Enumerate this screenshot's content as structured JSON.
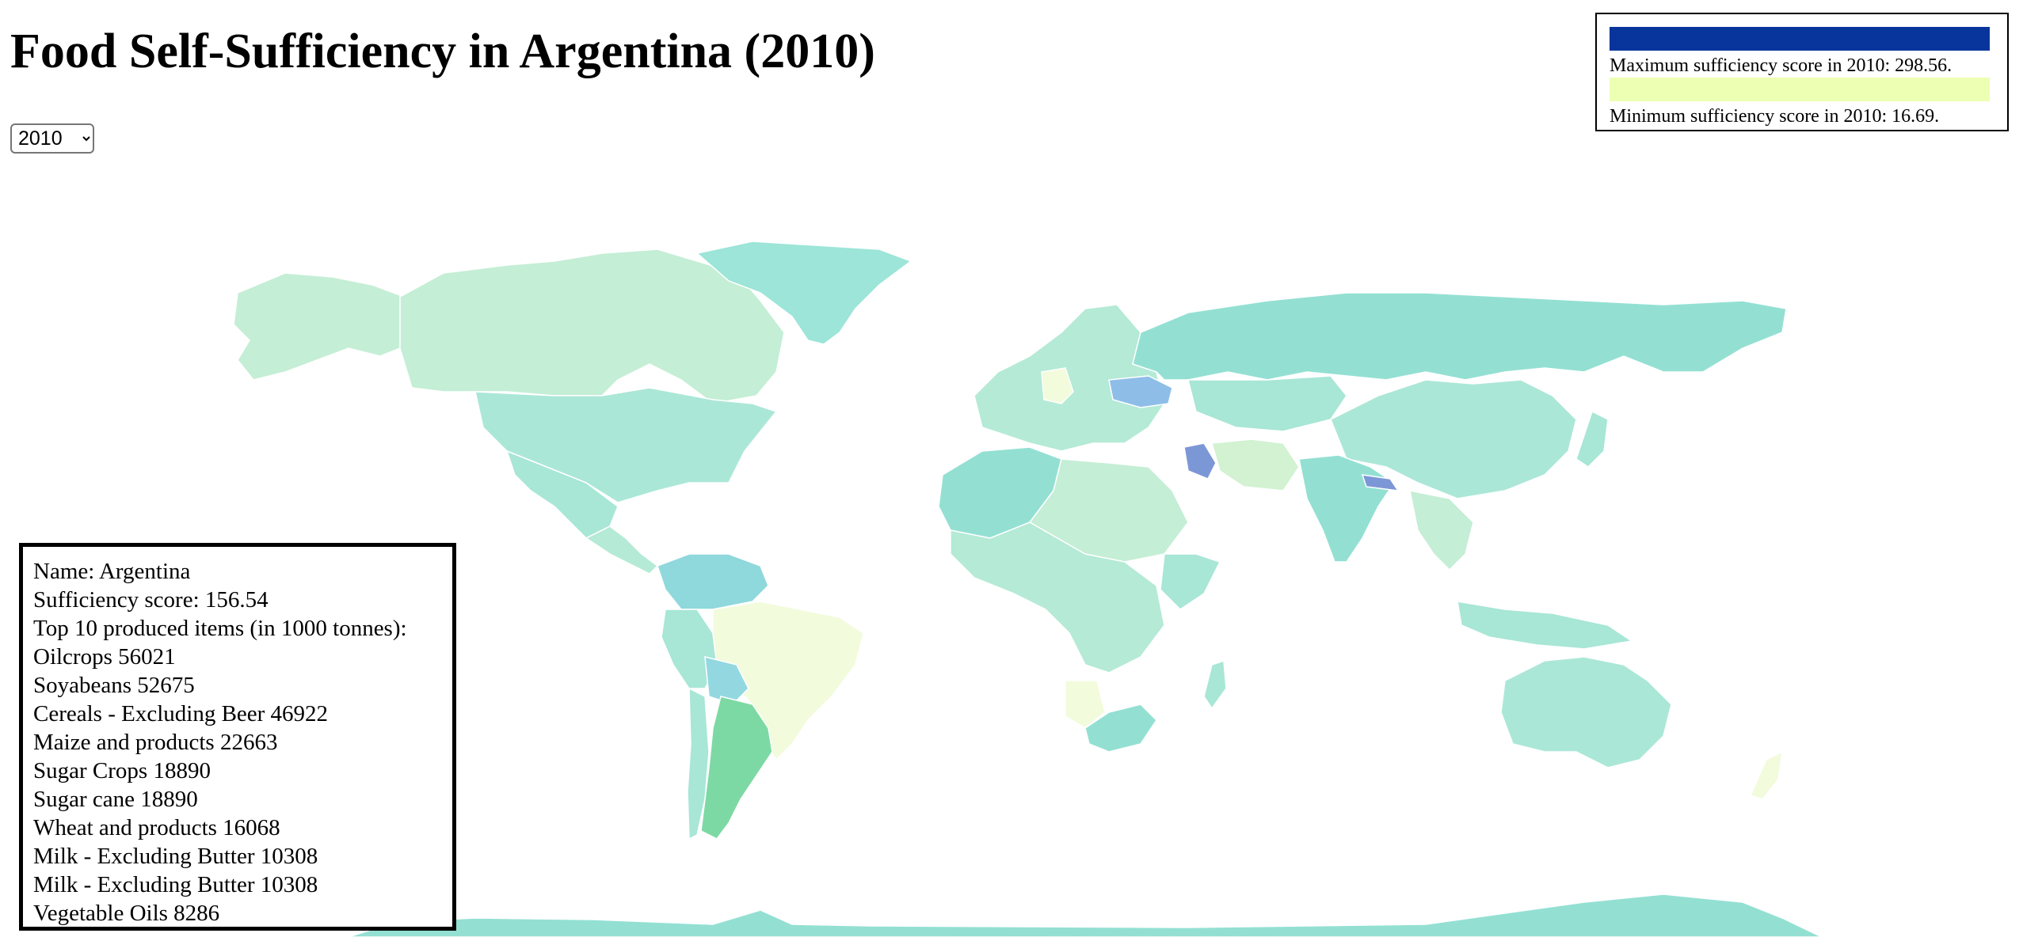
{
  "page": {
    "title": "Food Self-Sufficiency in Argentina (2010)"
  },
  "year_select": {
    "selected": "2010",
    "options": [
      "2010"
    ]
  },
  "legend": {
    "max_label": "Maximum sufficiency score in 2010: 298.56.",
    "min_label": "Minimum sufficiency score in 2010: 16.69.",
    "max_color": "#08359c",
    "min_color": "#edffb2"
  },
  "map": {
    "colors": {
      "ocean": "#ffffff",
      "border": "#ffffff",
      "teal": "#93e0d3",
      "light_teal": "#a8e6d6",
      "pale_green": "#c4eed5",
      "pale_yellow": "#f2fbdc",
      "mint": "#b4ead6",
      "green": "#7dd9a4",
      "blue": "#8ebee8",
      "dark_blue": "#7c97d6",
      "aqua": "#8fd8dc"
    },
    "regions": [
      {
        "name": "Canada",
        "color": "#c4eed5"
      },
      {
        "name": "Alaska",
        "color": "#c4eed5"
      },
      {
        "name": "Greenland",
        "color": "#9ce5d8"
      },
      {
        "name": "United States",
        "color": "#abe7d7"
      },
      {
        "name": "Mexico",
        "color": "#a8e6d6"
      },
      {
        "name": "Central America",
        "color": "#b4ead6"
      },
      {
        "name": "Colombia",
        "color": "#8fd8dc"
      },
      {
        "name": "Venezuela",
        "color": "#8fd8dc"
      },
      {
        "name": "Peru",
        "color": "#a8e6d6"
      },
      {
        "name": "Brazil",
        "color": "#f2fbdc"
      },
      {
        "name": "Bolivia",
        "color": "#93d8e0"
      },
      {
        "name": "Argentina",
        "color": "#7dd9a4"
      },
      {
        "name": "Chile",
        "color": "#a8e6d6"
      },
      {
        "name": "Europe",
        "color": "#b4ead6"
      },
      {
        "name": "Germany",
        "color": "#f2fbdc"
      },
      {
        "name": "Ukraine",
        "color": "#8ebee8"
      },
      {
        "name": "Russia",
        "color": "#93e0d3"
      },
      {
        "name": "Kazakhstan",
        "color": "#a8e6d6"
      },
      {
        "name": "China",
        "color": "#abe7d7"
      },
      {
        "name": "Iran",
        "color": "#d2f2d2"
      },
      {
        "name": "Iraq",
        "color": "#7c97d6"
      },
      {
        "name": "India",
        "color": "#93e0d3"
      },
      {
        "name": "Nepal",
        "color": "#7c97d6"
      },
      {
        "name": "Southeast Asia",
        "color": "#c4eed5"
      },
      {
        "name": "Indonesia",
        "color": "#a8e6d6"
      },
      {
        "name": "North Africa",
        "color": "#93e0d3"
      },
      {
        "name": "Sahara",
        "color": "#c4eed5"
      },
      {
        "name": "Central Africa",
        "color": "#b4ead6"
      },
      {
        "name": "Ethiopia",
        "color": "#a8e6d6"
      },
      {
        "name": "Angola",
        "color": "#f2fbdc"
      },
      {
        "name": "South Africa",
        "color": "#93e0d3"
      },
      {
        "name": "Madagascar",
        "color": "#a8e6d6"
      },
      {
        "name": "Australia",
        "color": "#abe7d7"
      },
      {
        "name": "New Zealand",
        "color": "#f2fbdc"
      },
      {
        "name": "Japan",
        "color": "#a8e6d6"
      },
      {
        "name": "Antarctica",
        "color": "#93e0d3"
      }
    ]
  },
  "tooltip": {
    "name": "Name: Argentina",
    "score": "Sufficiency score: 156.54",
    "top_items_header": "Top 10 produced items (in 1000 tonnes):",
    "items": [
      "Oilcrops 56021",
      "Soyabeans 52675",
      "Cereals - Excluding Beer 46922",
      "Maize and products 22663",
      "Sugar Crops 18890",
      "Sugar cane 18890",
      "Wheat and products 16068",
      "Milk - Excluding Butter 10308",
      "Milk - Excluding Butter 10308",
      "Vegetable Oils 8286"
    ]
  }
}
